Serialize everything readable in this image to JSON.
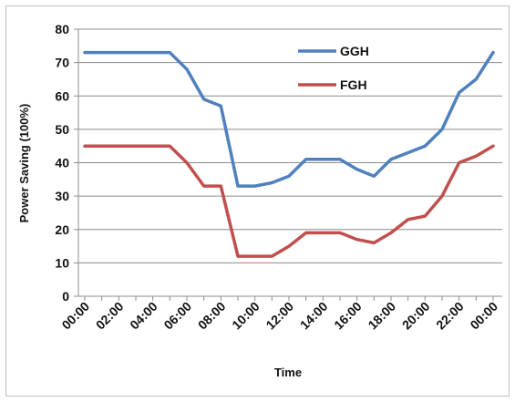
{
  "chart_data": {
    "type": "line",
    "title": "",
    "xlabel": "Time",
    "ylabel": "Power Saving (100%)",
    "ylim": [
      0,
      80
    ],
    "yticks": [
      "0",
      "10",
      "20",
      "30",
      "40",
      "50",
      "60",
      "70",
      "80"
    ],
    "x": [
      "00:00",
      "01:00",
      "02:00",
      "03:00",
      "04:00",
      "05:00",
      "06:00",
      "07:00",
      "08:00",
      "09:00",
      "10:00",
      "11:00",
      "12:00",
      "13:00",
      "14:00",
      "15:00",
      "16:00",
      "17:00",
      "18:00",
      "19:00",
      "20:00",
      "21:00",
      "22:00",
      "23:00",
      "00:00"
    ],
    "xtick_labels": [
      "00:00",
      "02:00",
      "04:00",
      "06:00",
      "08:00",
      "10:00",
      "12:00",
      "14:00",
      "16:00",
      "18:00",
      "20:00",
      "22:00",
      "00:00"
    ],
    "grid": "horizontal",
    "legend_position": "top-center",
    "series": [
      {
        "name": "GGH",
        "color": "#4F81BD",
        "values": [
          73,
          73,
          73,
          73,
          73,
          73,
          68,
          59,
          57,
          33,
          33,
          34,
          36,
          41,
          41,
          41,
          38,
          36,
          41,
          43,
          45,
          50,
          61,
          65,
          73
        ]
      },
      {
        "name": "FGH",
        "color": "#C0504D",
        "values": [
          45,
          45,
          45,
          45,
          45,
          45,
          40,
          33,
          33,
          12,
          12,
          12,
          15,
          19,
          19,
          19,
          17,
          16,
          19,
          23,
          24,
          30,
          40,
          42,
          45
        ]
      }
    ]
  }
}
